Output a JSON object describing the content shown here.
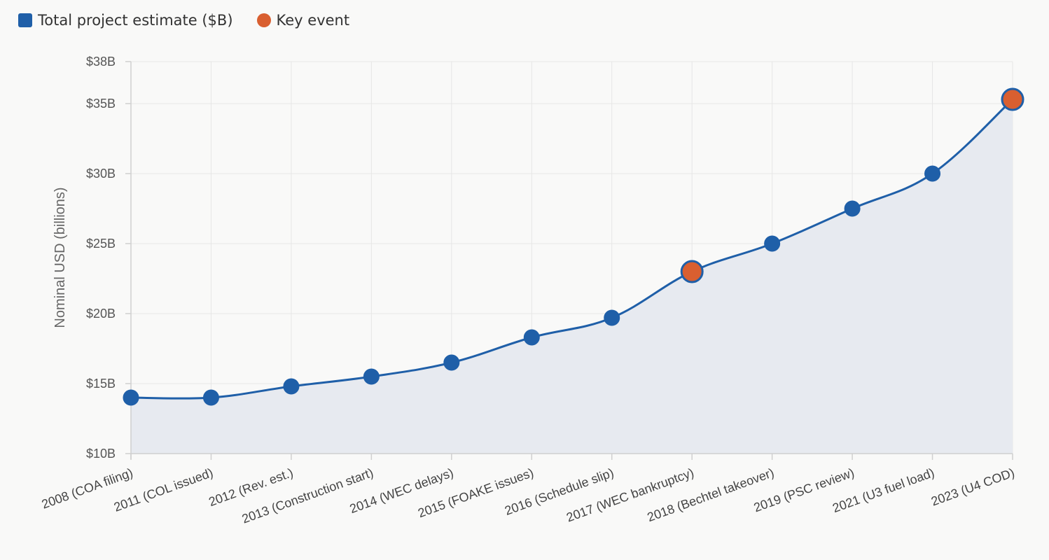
{
  "legend": {
    "estimate_label": "Total project estimate ($B)",
    "event_label": "Key event"
  },
  "colors": {
    "series": "#1f5fa8",
    "event": "#d95f30",
    "area": "#e7eaf0",
    "grid": "#e6e6e6",
    "background": "#f9f9f8"
  },
  "chart_data": {
    "type": "line",
    "area_fill": true,
    "smooth": true,
    "title": "",
    "xlabel": "",
    "ylabel": "Nominal USD (billions)",
    "ylim": [
      10,
      38
    ],
    "yticks": [
      10,
      15,
      20,
      25,
      30,
      35,
      38
    ],
    "ytick_labels": [
      "$10B",
      "$15B",
      "$20B",
      "$25B",
      "$30B",
      "$35B",
      "$38B"
    ],
    "grid": true,
    "legend_position": "top-left",
    "categories": [
      "2008 (COA filing)",
      "2011 (COL issued)",
      "2012 (Rev. est.)",
      "2013 (Construction start)",
      "2014 (WEC delays)",
      "2015 (FOAKE issues)",
      "2016 (Schedule slip)",
      "2017 (WEC bankruptcy)",
      "2018 (Bechtel takeover)",
      "2019 (PSC review)",
      "2021 (U3 fuel load)",
      "2023 (U4 COD)"
    ],
    "series": [
      {
        "name": "Total project estimate ($B)",
        "values": [
          14.0,
          14.0,
          14.8,
          15.5,
          16.5,
          18.3,
          19.7,
          23.0,
          25.0,
          27.5,
          30.0,
          35.3
        ]
      }
    ],
    "key_events": [
      "2017 (WEC bankruptcy)",
      "2023 (U4 COD)"
    ]
  }
}
